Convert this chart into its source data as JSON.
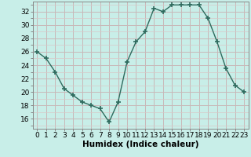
{
  "x": [
    0,
    1,
    2,
    3,
    4,
    5,
    6,
    7,
    8,
    9,
    10,
    11,
    12,
    13,
    14,
    15,
    16,
    17,
    18,
    19,
    20,
    21,
    22,
    23
  ],
  "y": [
    26,
    25,
    23,
    20.5,
    19.5,
    18.5,
    18,
    17.5,
    15.5,
    18.5,
    24.5,
    27.5,
    29,
    32.5,
    32,
    33,
    33,
    33,
    33,
    31,
    27.5,
    23.5,
    21,
    20
  ],
  "line_color": "#2e6b5e",
  "marker_color": "#2e6b5e",
  "bg_color": "#c8eee8",
  "grid_major_color": "#c8b8b8",
  "grid_minor_color": "#d8c8c8",
  "xlabel": "Humidex (Indice chaleur)",
  "xlim": [
    -0.5,
    23.5
  ],
  "ylim": [
    14.5,
    33.5
  ],
  "yticks": [
    16,
    18,
    20,
    22,
    24,
    26,
    28,
    30,
    32
  ],
  "xticks": [
    0,
    1,
    2,
    3,
    4,
    5,
    6,
    7,
    8,
    9,
    10,
    11,
    12,
    13,
    14,
    15,
    16,
    17,
    18,
    19,
    20,
    21,
    22,
    23
  ],
  "label_fontsize": 7.5,
  "tick_fontsize": 6.5
}
